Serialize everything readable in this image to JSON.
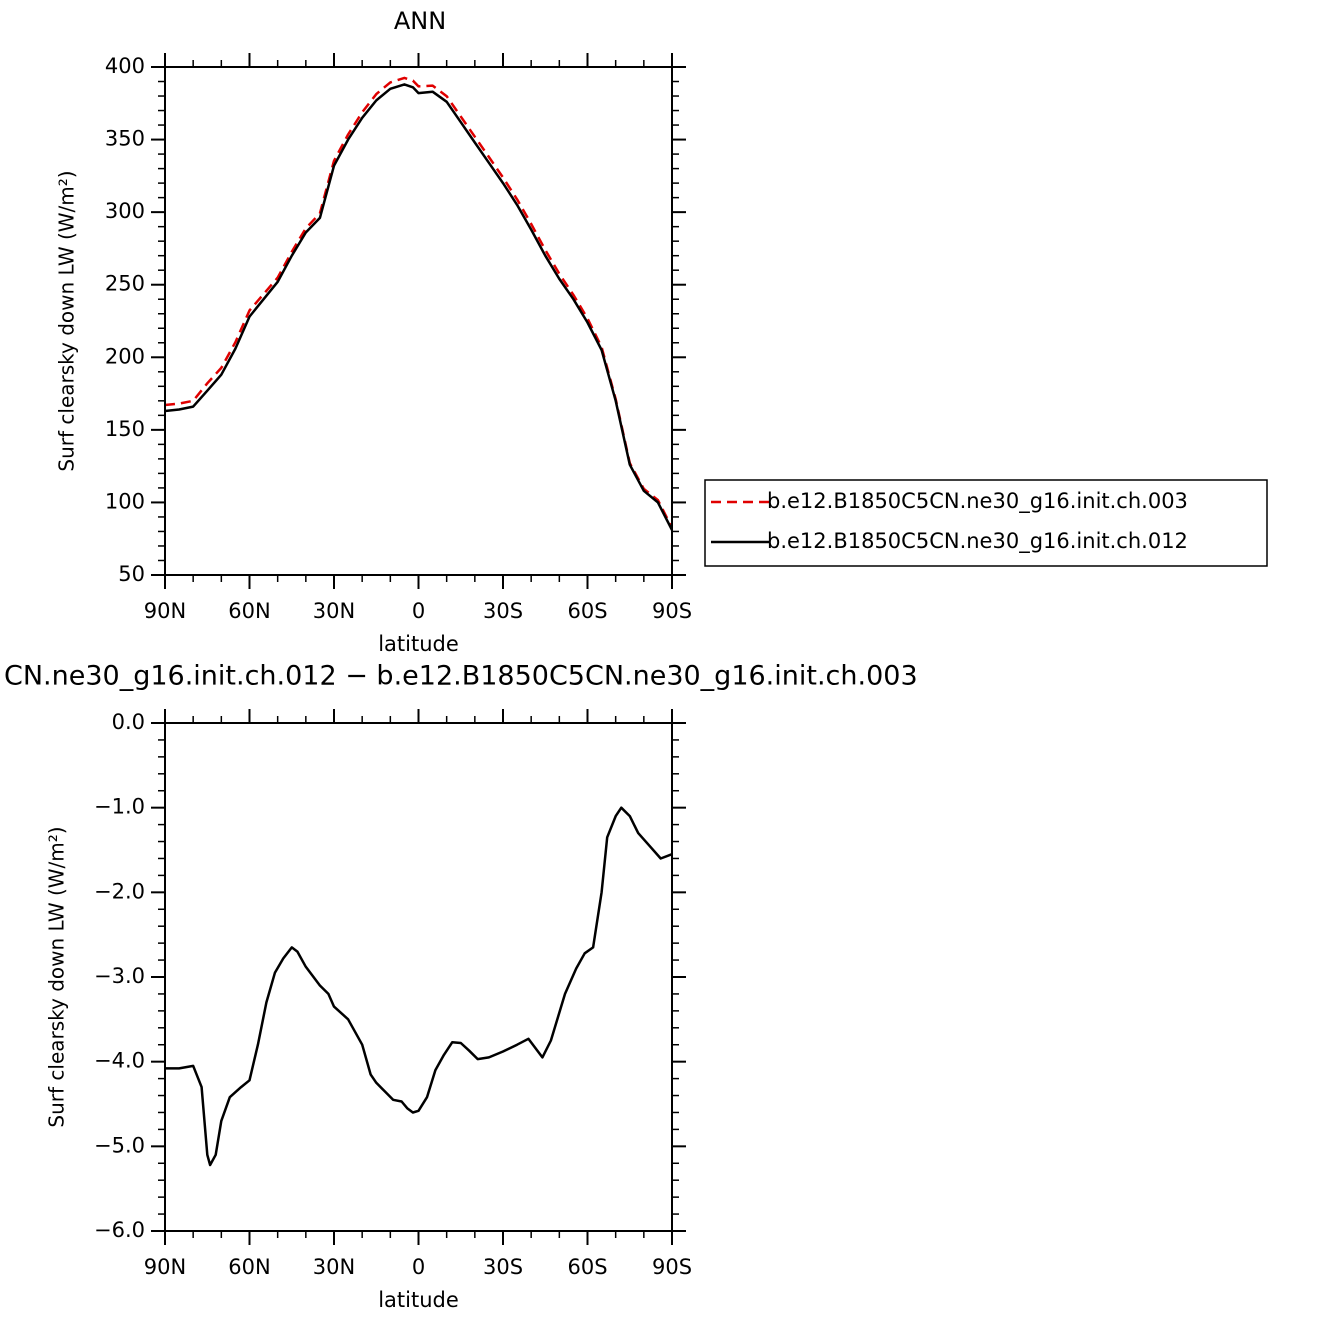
{
  "chart_data": [
    {
      "type": "line",
      "title": "ANN",
      "xlabel": "latitude",
      "ylabel": "Surf clearsky down LW (W/m²)",
      "x": [
        90,
        85,
        80,
        75,
        70,
        65,
        60,
        55,
        50,
        45,
        40,
        35,
        30,
        25,
        20,
        15,
        10,
        5,
        2,
        0,
        -5,
        -10,
        -15,
        -20,
        -25,
        -30,
        -35,
        -40,
        -45,
        -50,
        -55,
        -60,
        -65,
        -70,
        -75,
        -80,
        -85,
        -90
      ],
      "series": [
        {
          "name": "b.e12.B1850C5CN.ne30_g16.init.ch.003",
          "color": "#e00000",
          "dash": true,
          "values": [
            167.1,
            168.1,
            170.0,
            182.1,
            192.7,
            210.4,
            232.2,
            243.5,
            254.9,
            272.7,
            288.9,
            299.1,
            335.4,
            353.5,
            368.8,
            381.3,
            389.4,
            392.5,
            390.6,
            386.6,
            387.2,
            379.9,
            365.8,
            352.0,
            338.0,
            323.9,
            308.8,
            291.8,
            273.9,
            257.5,
            243.0,
            226.7,
            207.0,
            171.1,
            127.1,
            109.3,
            101.6,
            82.6
          ]
        },
        {
          "name": "b.e12.B1850C5CN.ne30_g16.init.ch.012",
          "color": "#000000",
          "dash": false,
          "values": [
            163,
            164,
            166,
            177,
            188,
            206,
            228,
            240,
            252,
            270,
            286,
            296,
            332,
            350,
            365,
            377,
            385,
            388,
            386,
            382,
            383,
            376,
            362,
            348,
            334,
            320,
            305,
            288,
            270,
            254,
            240,
            224,
            205,
            170,
            126,
            108,
            100,
            81
          ]
        }
      ],
      "xlim": [
        90,
        -90
      ],
      "xticks": [
        {
          "value": 90,
          "label": "90N"
        },
        {
          "value": 60,
          "label": "60N"
        },
        {
          "value": 30,
          "label": "30N"
        },
        0,
        {
          "value": -30,
          "label": "30S"
        },
        {
          "value": -60,
          "label": "60S"
        },
        {
          "value": -90,
          "label": "90S"
        }
      ],
      "ylim": [
        50,
        400
      ],
      "yticks": [
        50,
        100,
        150,
        200,
        250,
        300,
        350,
        400
      ],
      "grid": false
    },
    {
      "type": "line",
      "title": "CN.ne30_g16.init.ch.012 − b.e12.B1850C5CN.ne30_g16.init.ch.003",
      "xlabel": "latitude",
      "ylabel": "Surf clearsky down LW (W/m²)",
      "x": [
        90,
        85,
        80,
        77,
        75,
        74,
        72,
        70,
        67,
        63,
        60,
        57,
        54,
        51,
        48,
        45,
        43,
        40,
        35,
        32,
        30,
        25,
        20,
        17,
        15,
        12,
        9,
        6,
        4,
        2,
        0,
        -3,
        -6,
        -9,
        -12,
        -15,
        -18,
        -21,
        -25,
        -30,
        -35,
        -39,
        -44,
        -47,
        -52,
        -56,
        -59,
        -62,
        -65,
        -67,
        -70,
        -72,
        -75,
        -78,
        -82,
        -86,
        -90
      ],
      "series": [
        {
          "color": "#000000",
          "dash": false,
          "values": [
            -4.08,
            -4.08,
            -4.05,
            -4.3,
            -5.1,
            -5.22,
            -5.1,
            -4.7,
            -4.42,
            -4.3,
            -4.22,
            -3.8,
            -3.3,
            -2.95,
            -2.78,
            -2.65,
            -2.7,
            -2.88,
            -3.1,
            -3.2,
            -3.35,
            -3.5,
            -3.8,
            -4.15,
            -4.25,
            -4.35,
            -4.45,
            -4.47,
            -4.55,
            -4.6,
            -4.58,
            -4.42,
            -4.1,
            -3.92,
            -3.77,
            -3.78,
            -3.87,
            -3.97,
            -3.95,
            -3.88,
            -3.8,
            -3.73,
            -3.95,
            -3.75,
            -3.2,
            -2.9,
            -2.72,
            -2.65,
            -2.0,
            -1.35,
            -1.1,
            -1.0,
            -1.1,
            -1.3,
            -1.45,
            -1.6,
            -1.55
          ]
        }
      ],
      "xlim": [
        90,
        -90
      ],
      "xticks": [
        {
          "value": 90,
          "label": "90N"
        },
        {
          "value": 60,
          "label": "60N"
        },
        {
          "value": 30,
          "label": "30N"
        },
        0,
        {
          "value": -30,
          "label": "30S"
        },
        {
          "value": -60,
          "label": "60S"
        },
        {
          "value": -90,
          "label": "90S"
        }
      ],
      "ylim": [
        -6,
        0
      ],
      "yticks": [
        {
          "value": -6,
          "label": "−6.0"
        },
        {
          "value": -5,
          "label": "−5.0"
        },
        {
          "value": -4,
          "label": "−4.0"
        },
        {
          "value": -3,
          "label": "−3.0"
        },
        {
          "value": -2,
          "label": "−2.0"
        },
        {
          "value": -1,
          "label": "−1.0"
        },
        {
          "value": 0,
          "label": "0.0"
        }
      ],
      "grid": false
    }
  ]
}
